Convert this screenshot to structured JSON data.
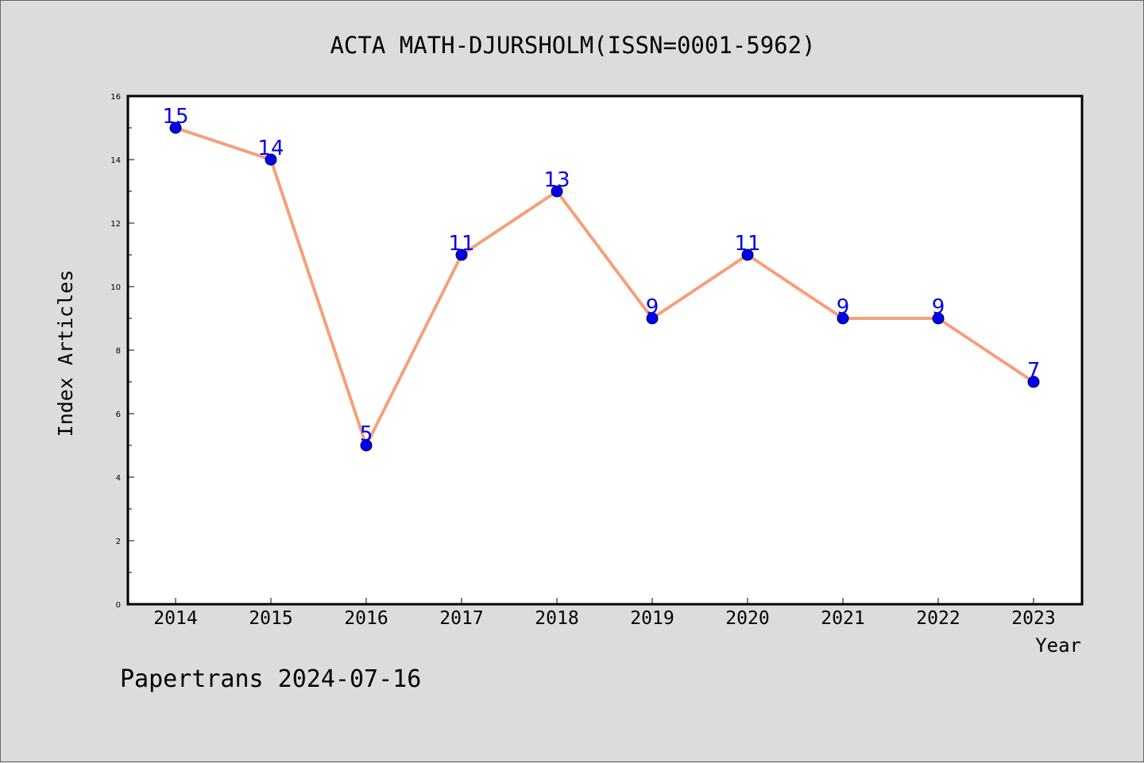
{
  "chart_data": {
    "type": "line",
    "title": "ACTA MATH-DJURSHOLM(ISSN=0001-5962)",
    "xlabel": "Year",
    "ylabel": "Index Articles",
    "categories": [
      "2014",
      "2015",
      "2016",
      "2017",
      "2018",
      "2019",
      "2020",
      "2021",
      "2022",
      "2023"
    ],
    "values": [
      15,
      14,
      5,
      11,
      13,
      9,
      11,
      9,
      9,
      7
    ],
    "ylim": [
      0,
      16
    ],
    "yticks": [
      0,
      2,
      4,
      6,
      8,
      10,
      12,
      14,
      16
    ],
    "grid": false,
    "line_color": "#f4a07c",
    "marker_color": "#0000ee",
    "label_color": "#0000ee"
  },
  "footer": {
    "text": "Papertrans 2024-07-16"
  }
}
